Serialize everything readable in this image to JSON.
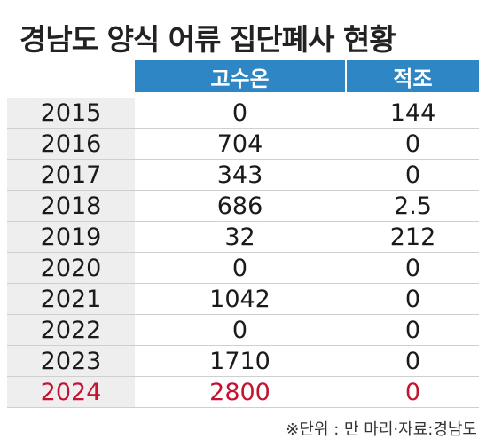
{
  "title": "경남도 양식 어류 집단폐사 현황",
  "colors": {
    "header_bg": "#2f86c4",
    "year_bg": "#eeeeee",
    "highlight": "#c41230"
  },
  "chart_data": {
    "type": "table",
    "title": "경남도 양식 어류 집단폐사 현황",
    "columns": [
      "고수온",
      "적조"
    ],
    "rows": [
      {
        "year": "2015",
        "values": [
          "0",
          "144"
        ]
      },
      {
        "year": "2016",
        "values": [
          "704",
          "0"
        ]
      },
      {
        "year": "2017",
        "values": [
          "343",
          "0"
        ]
      },
      {
        "year": "2018",
        "values": [
          "686",
          "2.5"
        ]
      },
      {
        "year": "2019",
        "values": [
          "32",
          "212"
        ]
      },
      {
        "year": "2020",
        "values": [
          "0",
          "0"
        ]
      },
      {
        "year": "2021",
        "values": [
          "1042",
          "0"
        ]
      },
      {
        "year": "2022",
        "values": [
          "0",
          "0"
        ]
      },
      {
        "year": "2023",
        "values": [
          "1710",
          "0"
        ]
      },
      {
        "year": "2024",
        "values": [
          "2800",
          "0"
        ],
        "highlight": true
      }
    ],
    "footnote": "※단위 : 만 마리·자료:경남도"
  }
}
